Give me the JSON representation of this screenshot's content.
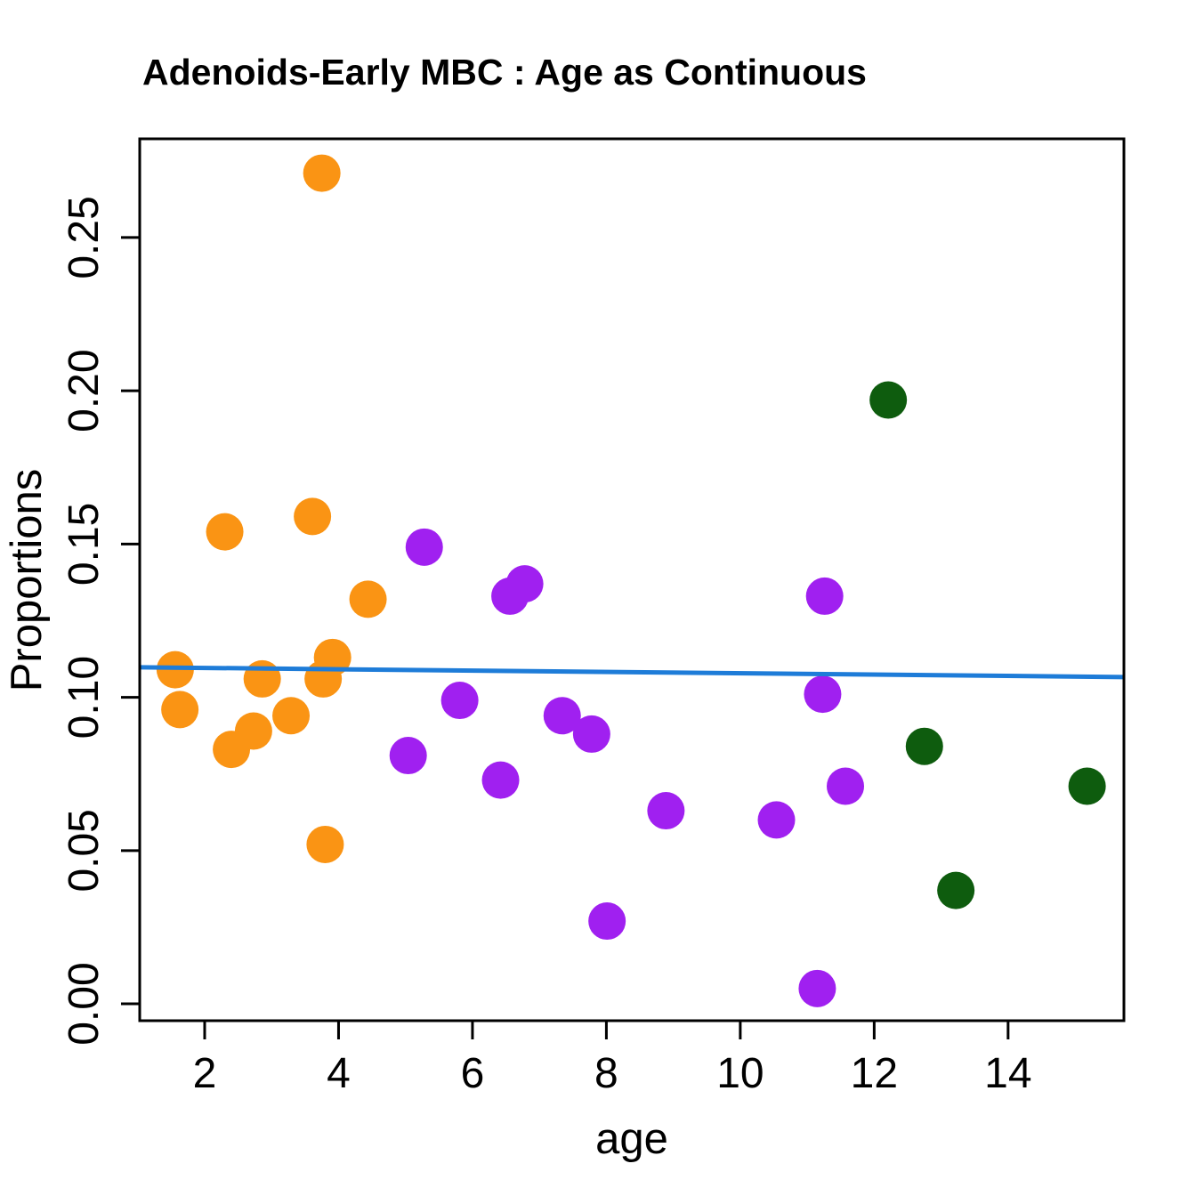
{
  "chart_data": {
    "type": "scatter",
    "title": "Adenoids-Early MBC : Age as Continuous",
    "xlabel": "age",
    "ylabel": "Proportions",
    "xlim": [
      1.03,
      15.73
    ],
    "ylim": [
      -0.0055,
      0.2822
    ],
    "grid": false,
    "legend": "none",
    "xticks": {
      "values": [
        2,
        4,
        6,
        8,
        10,
        12,
        14
      ],
      "labels": [
        "2",
        "4",
        "6",
        "8",
        "10",
        "12",
        "14"
      ]
    },
    "yticks": {
      "values": [
        0.0,
        0.05,
        0.1,
        0.15,
        0.2,
        0.25
      ],
      "labels": [
        "0.00",
        "0.05",
        "0.10",
        "0.15",
        "0.20",
        "0.25"
      ]
    },
    "series": [
      {
        "name": "orange-group",
        "color": "#FA9414",
        "points": [
          [
            1.56,
            0.109
          ],
          [
            1.63,
            0.096
          ],
          [
            2.3,
            0.154
          ],
          [
            2.4,
            0.083
          ],
          [
            2.73,
            0.089
          ],
          [
            2.86,
            0.106
          ],
          [
            3.29,
            0.094
          ],
          [
            3.61,
            0.159
          ],
          [
            3.75,
            0.271
          ],
          [
            3.77,
            0.106
          ],
          [
            3.8,
            0.052
          ],
          [
            3.91,
            0.113
          ],
          [
            4.44,
            0.132
          ]
        ]
      },
      {
        "name": "purple-group",
        "color": "#A020F0",
        "points": [
          [
            5.04,
            0.081
          ],
          [
            5.28,
            0.149
          ],
          [
            5.81,
            0.099
          ],
          [
            6.42,
            0.073
          ],
          [
            6.56,
            0.133
          ],
          [
            6.78,
            0.137
          ],
          [
            7.34,
            0.094
          ],
          [
            7.78,
            0.088
          ],
          [
            8.01,
            0.027
          ],
          [
            8.89,
            0.063
          ],
          [
            10.54,
            0.06
          ],
          [
            11.15,
            0.005
          ],
          [
            11.23,
            0.101
          ],
          [
            11.26,
            0.133
          ],
          [
            11.57,
            0.071
          ]
        ]
      },
      {
        "name": "darkgreen-group",
        "color": "#0E5C0E",
        "points": [
          [
            12.21,
            0.197
          ],
          [
            12.75,
            0.084
          ],
          [
            13.22,
            0.037
          ],
          [
            15.18,
            0.071
          ]
        ]
      }
    ],
    "trend_line": {
      "color": "#1E7CD8",
      "x1": 1.03,
      "y1": 0.1098,
      "x2": 15.73,
      "y2": 0.1066
    },
    "axis_color": "#000000"
  }
}
